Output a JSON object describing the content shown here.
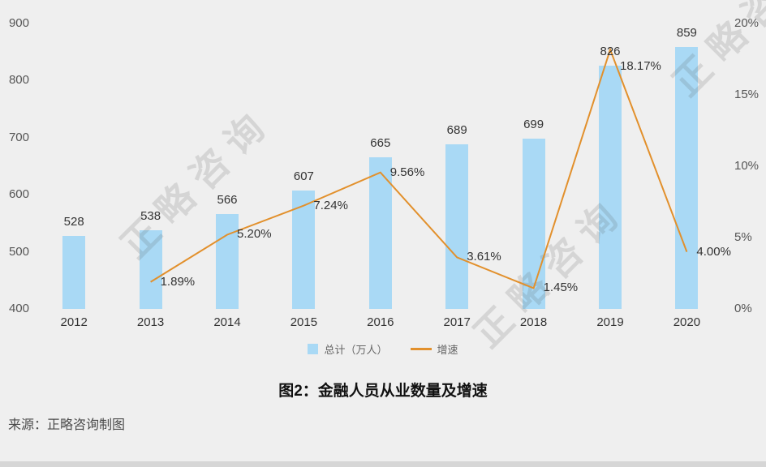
{
  "title": "图2：金融人员从业数量及增速",
  "source": "来源：正略咨询制图",
  "watermark": "正略咨询",
  "colors": {
    "bar": "#a9d9f5",
    "line": "#e2902c",
    "background": "#efefef",
    "label_text": "#333333",
    "axis_text": "#555555"
  },
  "chart_data": {
    "type": "bar",
    "subtype": "bar+line combo",
    "title": "图2：金融人员从业数量及增速",
    "categories": [
      "2012",
      "2013",
      "2014",
      "2015",
      "2016",
      "2017",
      "2018",
      "2019",
      "2020"
    ],
    "series": [
      {
        "name": "总计（万人）",
        "type": "bar",
        "axis": "left",
        "values": [
          528,
          538,
          566,
          607,
          665,
          689,
          699,
          826,
          859
        ],
        "value_labels": [
          "528",
          "538",
          "566",
          "607",
          "665",
          "689",
          "699",
          "826",
          "859"
        ]
      },
      {
        "name": "增速",
        "type": "line",
        "axis": "right",
        "values": [
          null,
          1.89,
          5.2,
          7.24,
          9.56,
          3.61,
          1.45,
          18.17,
          4.0
        ],
        "value_labels": [
          "",
          "1.89%",
          "5.20%",
          "7.24%",
          "9.56%",
          "3.61%",
          "1.45%",
          "18.17%",
          "4.00%"
        ]
      }
    ],
    "left_axis": {
      "min": 400,
      "max": 900,
      "tick_values": [
        900,
        800,
        700,
        600,
        500,
        400
      ],
      "tick_labels": [
        "900",
        "800",
        "700",
        "600",
        "500",
        "400"
      ]
    },
    "right_axis": {
      "min": 0,
      "max": 20,
      "tick_values": [
        20,
        15,
        10,
        5,
        0
      ],
      "tick_labels": [
        "20%",
        "15%",
        "10%",
        "5%",
        "0%"
      ]
    },
    "legend": [
      {
        "label": "总计（万人）",
        "type": "bar",
        "color": "#a9d9f5"
      },
      {
        "label": "增速",
        "type": "line",
        "color": "#e2902c"
      }
    ],
    "grid": false,
    "legend_position": "bottom-center"
  }
}
